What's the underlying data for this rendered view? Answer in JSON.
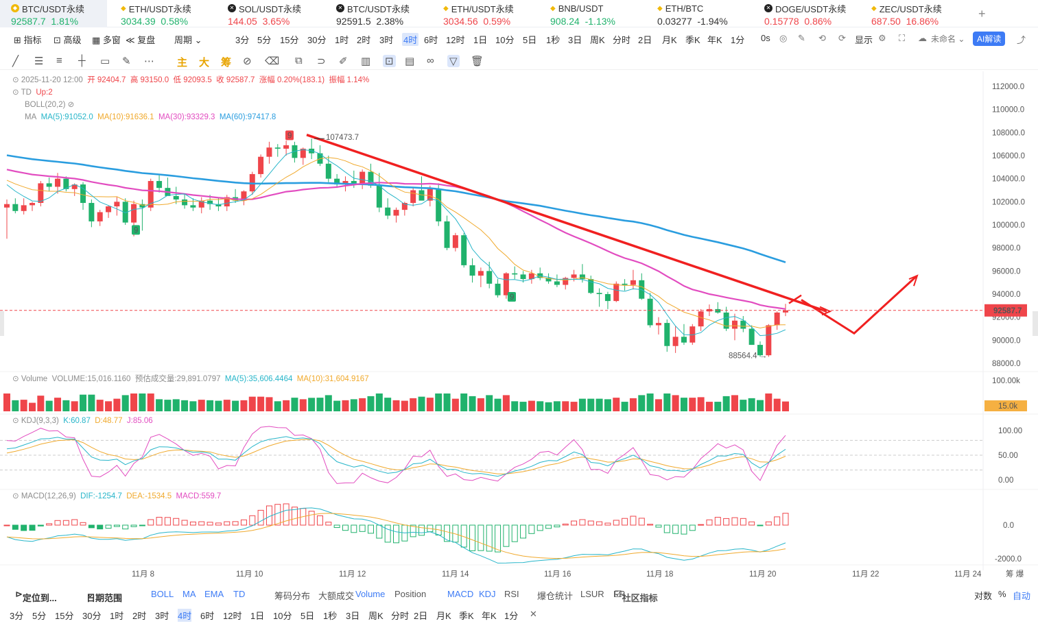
{
  "tickers": [
    {
      "name": "BTC/USDT永续",
      "price": "92587.7",
      "chg": "1.81%",
      "dir": "up",
      "icon": "y",
      "active": true
    },
    {
      "name": "ETH/USDT永续",
      "price": "3034.39",
      "chg": "0.58%",
      "dir": "up",
      "icon": "diamond"
    },
    {
      "name": "SOL/USDT永续",
      "price": "144.05",
      "chg": "3.65%",
      "dir": "dn",
      "icon": "b"
    },
    {
      "name": "BTC/USDT永续",
      "price": "92591.5",
      "chg": "2.38%",
      "dir": "plain",
      "icon": "b"
    },
    {
      "name": "ETH/USDT永续",
      "price": "3034.56",
      "chg": "0.59%",
      "dir": "dn",
      "icon": "diamond"
    },
    {
      "name": "BNB/USDT",
      "price": "908.24",
      "chg": "-1.13%",
      "dir": "up",
      "icon": "diamond"
    },
    {
      "name": "ETH/BTC",
      "price": "0.03277",
      "chg": "-1.94%",
      "dir": "plain",
      "icon": "diamond"
    },
    {
      "name": "DOGE/USDT永续",
      "price": "0.15778",
      "chg": "0.86%",
      "dir": "dn",
      "icon": "b"
    },
    {
      "name": "ZEC/USDT永续",
      "price": "687.50",
      "chg": "16.86%",
      "dir": "dn",
      "icon": "diamond"
    }
  ],
  "add_tab": "+",
  "toolbar": {
    "items": [
      "指标",
      "高级",
      "多窗",
      "复盘",
      "周期",
      "3分",
      "5分",
      "15分",
      "30分",
      "1时",
      "2时",
      "3时",
      "4时",
      "6时",
      "12时",
      "1日",
      "10分",
      "5日",
      "1秒",
      "3日",
      "周K",
      "分时",
      "2日",
      "月K",
      "季K",
      "年K",
      "1分",
      "0s"
    ],
    "selected": "4时",
    "display": "显示",
    "unnamed": "未命名",
    "ai": "AI解读"
  },
  "drawing_tools": {
    "zhu": "主",
    "da": "大",
    "chou": "筹"
  },
  "legend": {
    "ohlc": "2025-11-20 12:00  开 92404.7  高 93150.0  低 92093.5  收 92587.7  涨幅 0.20%(183.1)  振幅 1.14%",
    "ohlc_date": "2025-11-20 12:00",
    "open": "开 92404.7",
    "high": "高 93150.0",
    "low": "低 92093.5",
    "close": "收 92587.7",
    "chg": "涨幅 0.20%(183.1)",
    "amp": "振幅 1.14%",
    "td": "TD",
    "td_val": "Up:2",
    "boll": "BOLL(20,2)",
    "ma": "MA",
    "ma5": "MA(5):91052.0",
    "ma10": "MA(10):91636.1",
    "ma30": "MA(30):93329.3",
    "ma60": "MA(60):97417.8"
  },
  "annotations": {
    "high_label": "107473.7",
    "low_label": "88564.4",
    "td9": "9",
    "current_price": "92587.7",
    "vol_last": "15.0k"
  },
  "price_axis": [
    "112000.0",
    "110000.0",
    "108000.0",
    "106000.0",
    "104000.0",
    "102000.0",
    "100000.0",
    "98000.0",
    "96000.0",
    "94000.0",
    "92000.0",
    "90000.0",
    "88000.0"
  ],
  "volume": {
    "label": "Volume",
    "vol": "VOLUME:15,016.1160",
    "est": "预估成交量:29,891.0797",
    "ma5": "MA(5):35,606.4464",
    "ma10": "MA(10):31,604.9167",
    "axis_top": "100.00k"
  },
  "kdj": {
    "label": "KDJ(9,3,3)",
    "k": "K:60.87",
    "d": "D:48.77",
    "j": "J:85.06",
    "axis": [
      "100.00",
      "50.00",
      "0.00"
    ]
  },
  "macd": {
    "label": "MACD(12,26,9)",
    "dif": "DIF:-1254.7",
    "dea": "DEA:-1534.5",
    "macd": "MACD:559.7",
    "axis": [
      "0.0",
      "-2000.0"
    ]
  },
  "x_axis": [
    "11月 8",
    "11月 10",
    "11月 12",
    "11月 14",
    "11月 16",
    "11月 18",
    "11月 20",
    "11月 22",
    "11月 24"
  ],
  "x_axis_right": "筹 爆",
  "bottom_indicators": {
    "locate": "定位到...",
    "range": "日期范围",
    "items": [
      "BOLL",
      "MA",
      "EMA",
      "TD",
      "筹码分布",
      "大额成交"
    ],
    "items2": [
      "Volume",
      "Position",
      "MACD",
      "KDJ",
      "RSI",
      "爆仓统计",
      "LSUR",
      "FR"
    ],
    "community": "社区指标",
    "right": [
      "对数",
      "%",
      "自动"
    ]
  },
  "bottom_periods": [
    "3分",
    "5分",
    "15分",
    "30分",
    "1时",
    "2时",
    "3时",
    "4时",
    "6时",
    "12时",
    "1日",
    "10分",
    "5日",
    "1秒",
    "3日",
    "周K",
    "分时",
    "2日",
    "月K",
    "季K",
    "年K",
    "1分"
  ],
  "bottom_selected": "4时",
  "colors": {
    "up": "#ef454a",
    "down": "#20b26c",
    "ma5": "#26b5c9",
    "ma10": "#f0a92c",
    "ma30": "#e24cc0",
    "ma60": "#2a9ddf",
    "trend": "#f02020",
    "accent": "#3d7bf5"
  },
  "chart_data": {
    "type": "candlestick",
    "x": [
      "11月 8",
      "11月 10",
      "11月 12",
      "11月 14",
      "11月 16",
      "11月 18",
      "11月 20"
    ],
    "candles_note": "4h candles, Nov 6 - Nov 20 2025",
    "ylim": [
      87000,
      113000
    ],
    "candles": [
      [
        101500,
        102200,
        98800,
        101800
      ],
      [
        101800,
        102300,
        101000,
        101200
      ],
      [
        101200,
        102300,
        100900,
        101700
      ],
      [
        101700,
        102000,
        101200,
        101900
      ],
      [
        101900,
        103800,
        101600,
        103600
      ],
      [
        103600,
        104100,
        102900,
        103300
      ],
      [
        103300,
        104500,
        102700,
        104000
      ],
      [
        104000,
        104200,
        102900,
        103100
      ],
      [
        103100,
        103600,
        102500,
        103500
      ],
      [
        103500,
        103700,
        101300,
        101900
      ],
      [
        101900,
        102200,
        99800,
        100300
      ],
      [
        100300,
        101300,
        99900,
        101100
      ],
      [
        101100,
        101700,
        100600,
        101600
      ],
      [
        101600,
        102400,
        100800,
        102000
      ],
      [
        102000,
        102300,
        100000,
        100200
      ],
      [
        100200,
        102100,
        99000,
        101800
      ],
      [
        101800,
        102200,
        99500,
        101500
      ],
      [
        101500,
        104000,
        101200,
        103800
      ],
      [
        103800,
        104300,
        102800,
        103200
      ],
      [
        103200,
        104100,
        102700,
        102500
      ],
      [
        102500,
        103300,
        101800,
        102200
      ],
      [
        102200,
        102700,
        101400,
        101700
      ],
      [
        101700,
        102300,
        101200,
        101500
      ],
      [
        101500,
        102400,
        101000,
        102100
      ],
      [
        102100,
        102600,
        101300,
        101800
      ],
      [
        101800,
        102400,
        101200,
        101600
      ],
      [
        101600,
        102600,
        101200,
        102400
      ],
      [
        102400,
        103100,
        101900,
        102100
      ],
      [
        102100,
        103000,
        101700,
        102900
      ],
      [
        102900,
        104600,
        102600,
        104400
      ],
      [
        104400,
        106100,
        104100,
        105900
      ],
      [
        105900,
        107200,
        105300,
        106700
      ],
      [
        106700,
        107000,
        105900,
        106600
      ],
      [
        106600,
        107300,
        106000,
        106900
      ],
      [
        106900,
        107200,
        105400,
        105800
      ],
      [
        105800,
        106700,
        105200,
        106600
      ],
      [
        106600,
        107473,
        105700,
        106200
      ],
      [
        106200,
        106900,
        105100,
        105300
      ],
      [
        105300,
        106000,
        103700,
        104000
      ],
      [
        104000,
        104400,
        103200,
        103500
      ],
      [
        103500,
        104200,
        102900,
        103800
      ],
      [
        103800,
        104700,
        103200,
        103600
      ],
      [
        103600,
        104800,
        103100,
        104600
      ],
      [
        104600,
        105300,
        103200,
        103400
      ],
      [
        103400,
        104500,
        101100,
        101500
      ],
      [
        101500,
        102300,
        100500,
        100800
      ],
      [
        100800,
        101500,
        100200,
        101300
      ],
      [
        101300,
        102000,
        100800,
        101900
      ],
      [
        101900,
        103300,
        101600,
        103000
      ],
      [
        103000,
        104200,
        102200,
        102100
      ],
      [
        102100,
        103400,
        101600,
        103100
      ],
      [
        103100,
        103600,
        99900,
        100300
      ],
      [
        100300,
        100800,
        97800,
        98000
      ],
      [
        98000,
        99300,
        97700,
        99100
      ],
      [
        99100,
        99300,
        96300,
        96500
      ],
      [
        96500,
        97100,
        95000,
        95600
      ],
      [
        95600,
        96300,
        94600,
        96000
      ],
      [
        96000,
        96800,
        94500,
        94900
      ],
      [
        94900,
        95300,
        93700,
        93900
      ],
      [
        93900,
        95900,
        93600,
        95800
      ],
      [
        95800,
        96400,
        95300,
        95700
      ],
      [
        95700,
        96000,
        95000,
        95300
      ],
      [
        95300,
        96100,
        94900,
        95800
      ],
      [
        95800,
        96300,
        95200,
        95400
      ],
      [
        95400,
        95800,
        94900,
        95100
      ],
      [
        95100,
        95700,
        94600,
        94800
      ],
      [
        94800,
        95500,
        94400,
        95400
      ],
      [
        95400,
        96100,
        95100,
        95700
      ],
      [
        95700,
        96600,
        95000,
        95300
      ],
      [
        95300,
        95600,
        94000,
        94100
      ],
      [
        94100,
        94500,
        92900,
        94000
      ],
      [
        94000,
        94200,
        92700,
        93400
      ],
      [
        93400,
        95100,
        93300,
        94900
      ],
      [
        94900,
        95300,
        94300,
        94800
      ],
      [
        94800,
        96100,
        94400,
        95200
      ],
      [
        95200,
        95800,
        93500,
        93600
      ],
      [
        93600,
        94100,
        91100,
        91300
      ],
      [
        91300,
        92000,
        90500,
        91500
      ],
      [
        91500,
        91800,
        89000,
        89500
      ],
      [
        89500,
        91200,
        88900,
        90300
      ],
      [
        90300,
        91400,
        89600,
        89800
      ],
      [
        89800,
        91400,
        89600,
        91200
      ],
      [
        91200,
        92700,
        90800,
        92500
      ],
      [
        92500,
        93100,
        92100,
        92700
      ],
      [
        92700,
        93300,
        92300,
        92400
      ],
      [
        92400,
        92900,
        90800,
        91000
      ],
      [
        91000,
        92300,
        90000,
        91700
      ],
      [
        91700,
        92100,
        90700,
        91000
      ],
      [
        91000,
        91300,
        89600,
        89600
      ],
      [
        89600,
        89900,
        88564,
        88700
      ],
      [
        88700,
        91400,
        88564,
        91300
      ],
      [
        91300,
        92500,
        90900,
        92400
      ],
      [
        92404.7,
        93150,
        92093.5,
        92587.7
      ]
    ]
  }
}
